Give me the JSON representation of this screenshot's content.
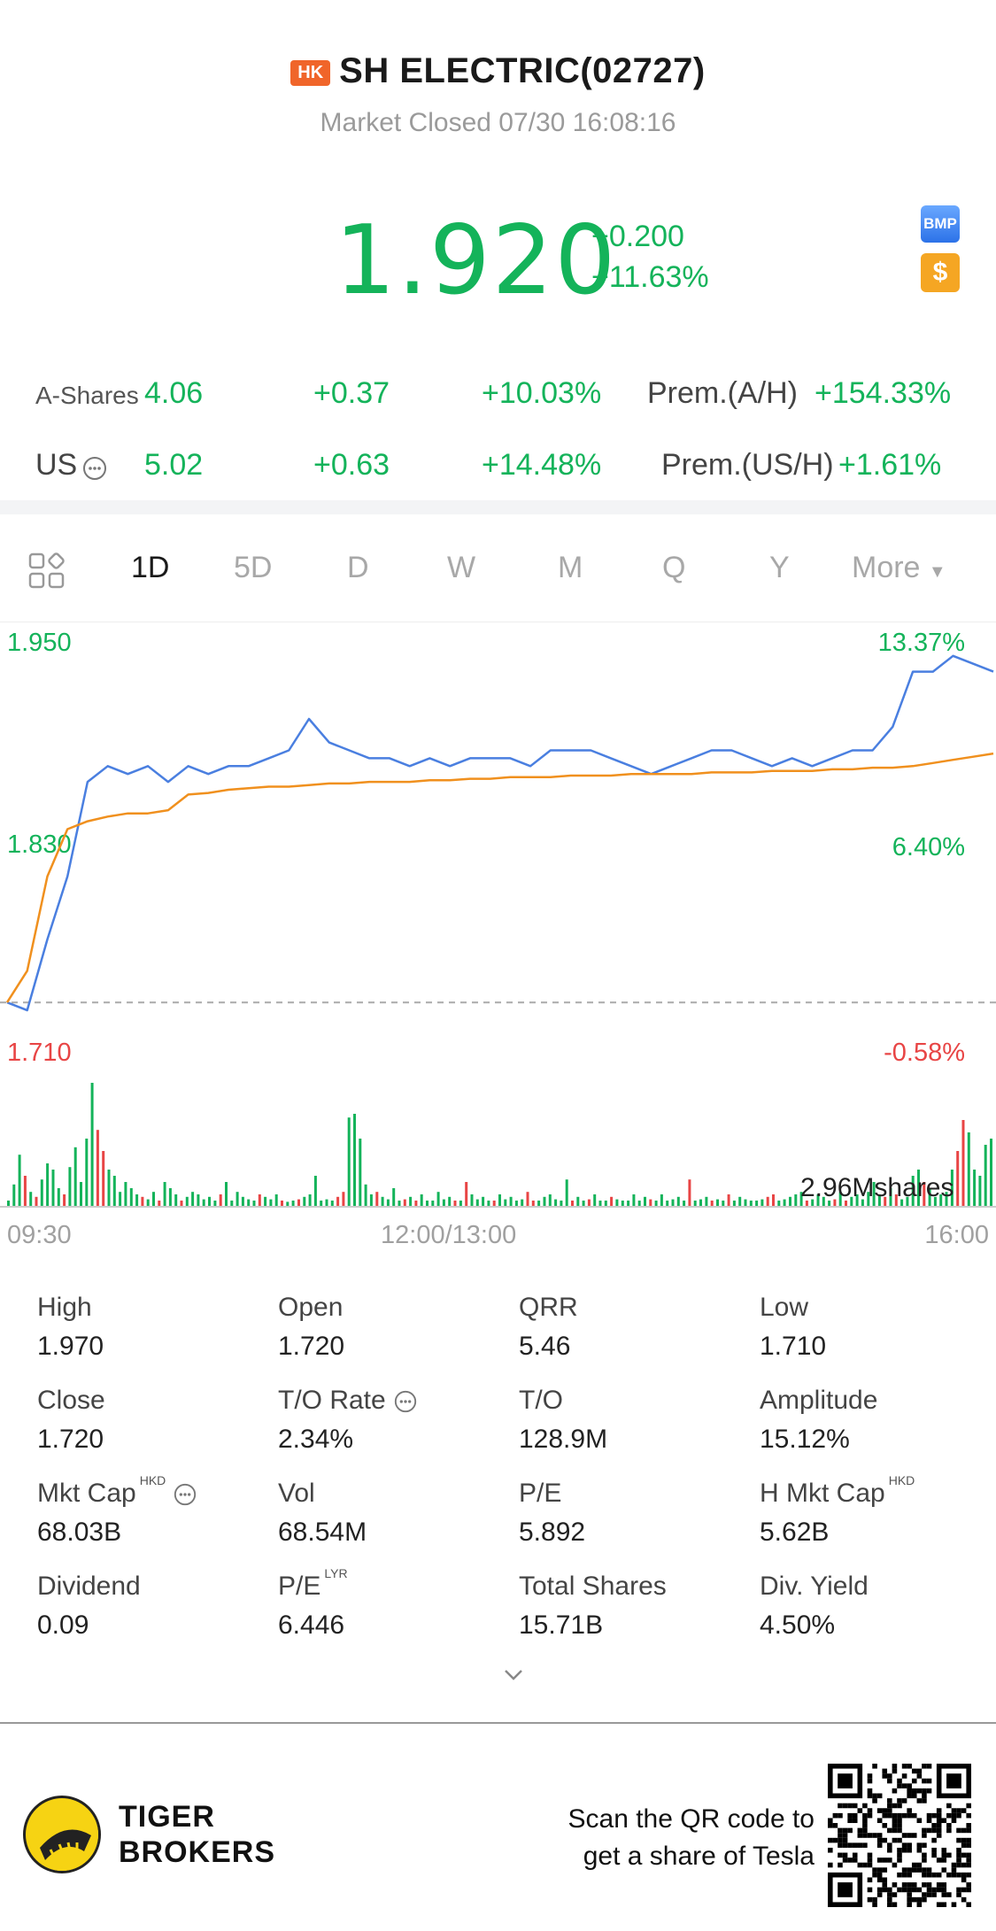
{
  "header": {
    "market_badge": "HK",
    "title": "SH ELECTRIC(02727)",
    "status": "Market Closed 07/30 16:08:16"
  },
  "quote": {
    "price": "1.920",
    "change": "+0.200",
    "change_pct": "+11.63%",
    "icons": [
      "bmp-icon",
      "dollar-icon"
    ],
    "bmp_label": "BMP",
    "dollar_label": "$"
  },
  "a_shares": {
    "label": "A-Shares",
    "price": "4.06",
    "change": "+0.37",
    "change_pct": "+10.03%",
    "prem_label": "Prem.(A/H)",
    "prem_value": "+154.33%"
  },
  "us": {
    "label": "US",
    "price": "5.02",
    "change": "+0.63",
    "change_pct": "+14.48%",
    "prem_label": "Prem.(US/H)",
    "prem_value": "+1.61%"
  },
  "tabs": {
    "items": [
      "1D",
      "5D",
      "D",
      "W",
      "M",
      "Q",
      "Y"
    ],
    "active": "1D",
    "more": "More"
  },
  "chart": {
    "y_top": "1.950",
    "y_mid": "1.830",
    "y_bottom": "1.710",
    "pct_top": "13.37%",
    "pct_mid": "6.40%",
    "pct_bottom": "-0.58%",
    "volume_label": "2.96Mshares",
    "time_start": "09:30",
    "time_mid": "12:00/13:00",
    "time_end": "16:00"
  },
  "chart_data": {
    "type": "line",
    "series": [
      {
        "values": [
          1.72,
          1.715,
          1.76,
          1.8,
          1.86,
          1.87,
          1.865,
          1.87,
          1.86,
          1.87,
          1.865,
          1.87,
          1.87,
          1.875,
          1.88,
          1.9,
          1.885,
          1.88,
          1.875,
          1.875,
          1.87,
          1.875,
          1.87,
          1.875,
          1.875,
          1.875,
          1.87,
          1.88,
          1.88,
          1.88,
          1.875,
          1.87,
          1.865,
          1.87,
          1.875,
          1.88,
          1.88,
          1.875,
          1.87,
          1.875,
          1.87,
          1.875,
          1.88,
          1.88,
          1.895,
          1.93,
          1.93,
          1.94,
          1.935,
          1.93
        ]
      },
      {
        "values": [
          1.72,
          1.74,
          1.8,
          1.83,
          1.835,
          1.838,
          1.84,
          1.84,
          1.842,
          1.852,
          1.853,
          1.855,
          1.856,
          1.857,
          1.857,
          1.858,
          1.859,
          1.859,
          1.86,
          1.86,
          1.86,
          1.861,
          1.861,
          1.862,
          1.862,
          1.863,
          1.863,
          1.863,
          1.864,
          1.864,
          1.864,
          1.865,
          1.865,
          1.865,
          1.865,
          1.866,
          1.866,
          1.866,
          1.867,
          1.867,
          1.867,
          1.868,
          1.868,
          1.869,
          1.869,
          1.87,
          1.872,
          1.874,
          1.876,
          1.878
        ]
      }
    ],
    "ylim": [
      1.71,
      1.95
    ],
    "y_ticks": [
      "1.950",
      "1.830",
      "1.710"
    ],
    "pct_ticks": [
      "13.37%",
      "6.40%",
      "-0.58%"
    ],
    "x_ticks": [
      "09:30",
      "12:00/13:00",
      "16:00"
    ],
    "prev_close": 1.72,
    "colors": {
      "price": "#4a7fe0",
      "avg": "#f0901e",
      "up": "#14b35a",
      "down": "#e84545"
    },
    "volume_unit": "2.96Mshares",
    "volume": [
      0.05,
      0.18,
      0.42,
      0.25,
      0.12,
      0.08,
      0.22,
      0.35,
      0.3,
      0.15,
      0.1,
      0.32,
      0.48,
      0.2,
      0.55,
      1.0,
      0.62,
      0.45,
      0.3,
      0.25,
      0.12,
      0.2,
      0.15,
      0.1,
      0.08,
      0.06,
      0.12,
      0.05,
      0.2,
      0.15,
      0.1,
      0.05,
      0.08,
      0.12,
      0.1,
      0.06,
      0.08,
      0.05,
      0.1,
      0.2,
      0.05,
      0.12,
      0.08,
      0.06,
      0.05,
      0.1,
      0.08,
      0.06,
      0.1,
      0.05,
      0.04,
      0.05,
      0.06,
      0.08,
      0.1,
      0.25,
      0.05,
      0.06,
      0.05,
      0.08,
      0.12,
      0.72,
      0.75,
      0.55,
      0.18,
      0.1,
      0.12,
      0.08,
      0.06,
      0.15,
      0.05,
      0.06,
      0.08,
      0.05,
      0.1,
      0.05,
      0.05,
      0.12,
      0.06,
      0.08,
      0.05,
      0.05,
      0.2,
      0.1,
      0.06,
      0.08,
      0.05,
      0.05,
      0.1,
      0.06,
      0.08,
      0.05,
      0.06,
      0.12,
      0.05,
      0.05,
      0.08,
      0.1,
      0.06,
      0.05,
      0.22,
      0.05,
      0.08,
      0.05,
      0.06,
      0.1,
      0.05,
      0.05,
      0.08,
      0.06,
      0.05,
      0.05,
      0.1,
      0.05,
      0.08,
      0.06,
      0.05,
      0.1,
      0.05,
      0.06,
      0.08,
      0.05,
      0.22,
      0.05,
      0.06,
      0.08,
      0.05,
      0.06,
      0.05,
      0.1,
      0.05,
      0.08,
      0.06,
      0.05,
      0.05,
      0.06,
      0.08,
      0.1,
      0.05,
      0.06,
      0.08,
      0.1,
      0.12,
      0.05,
      0.06,
      0.1,
      0.08,
      0.05,
      0.06,
      0.12,
      0.05,
      0.08,
      0.1,
      0.06,
      0.12,
      0.2,
      0.1,
      0.08,
      0.15,
      0.1,
      0.06,
      0.08,
      0.25,
      0.3,
      0.2,
      0.15,
      0.08,
      0.1,
      0.12,
      0.3,
      0.45,
      0.7,
      0.6,
      0.3,
      0.25,
      0.5,
      0.55
    ],
    "volume_dir": "mixed"
  },
  "stats": [
    {
      "label": "High",
      "value": "1.970"
    },
    {
      "label": "Open",
      "value": "1.720"
    },
    {
      "label": "QRR",
      "value": "5.46"
    },
    {
      "label": "Low",
      "value": "1.710"
    },
    {
      "label": "Close",
      "value": "1.720"
    },
    {
      "label": "T/O Rate",
      "value": "2.34%"
    },
    {
      "label": "T/O",
      "value": "128.9M"
    },
    {
      "label": "Amplitude",
      "value": "15.12%"
    },
    {
      "label": "Mkt Cap",
      "value": "68.03B",
      "sup": "HKD"
    },
    {
      "label": "Vol",
      "value": "68.54M"
    },
    {
      "label": "P/E",
      "value": "5.892"
    },
    {
      "label": "H Mkt Cap",
      "value": "5.62B",
      "sup": "HKD"
    },
    {
      "label": "Dividend",
      "value": "0.09"
    },
    {
      "label": "P/E",
      "value": "6.446",
      "sup": "LYR"
    },
    {
      "label": "Total Shares",
      "value": "15.71B"
    },
    {
      "label": "Div. Yield",
      "value": "4.50%"
    }
  ],
  "footer": {
    "brand_line1": "TIGER",
    "brand_line2": "BROKERS",
    "scan_line1": "Scan the QR code to",
    "scan_line2": "get a share of Tesla"
  }
}
